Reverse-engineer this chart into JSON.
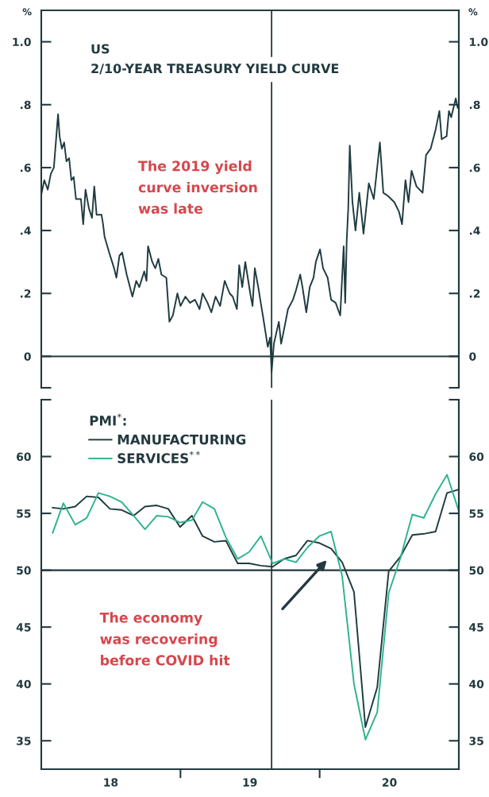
{
  "chart_data": [
    {
      "type": "line",
      "title": "US",
      "subtitle": "2/10-YEAR TREASURY YIELD CURVE",
      "ylabel": "%",
      "y2label": "%",
      "xlim": [
        "2018-01-01",
        "2020-12-31"
      ],
      "ylim": [
        -0.1,
        1.1
      ],
      "yticks": [
        {
          "value": -0.1,
          "label": null
        },
        0,
        {
          "value": 0.2,
          "label": ".2"
        },
        {
          "value": 0.4,
          "label": ".4"
        },
        {
          "value": 0.6,
          "label": ".6"
        },
        {
          "value": 0.8,
          "label": ".8"
        },
        {
          "value": 1,
          "label": "1.0"
        }
      ],
      "y2lim": [
        -0.1,
        1.1
      ],
      "y2ticks": [
        {
          "value": -0.1,
          "label": null
        },
        0,
        {
          "value": 0.2,
          "label": ".2"
        },
        {
          "value": 0.4,
          "label": ".4"
        },
        {
          "value": 0.6,
          "label": ".6"
        },
        {
          "value": 0.8,
          "label": ".8"
        },
        {
          "value": 1,
          "label": "1.0"
        }
      ],
      "tick_labels": "y",
      "series": [
        {
          "color": "#1f3b40",
          "x": [
            "2018-01-02",
            "2018-01-09",
            "2018-01-18",
            "2018-01-26",
            "2018-02-03",
            "2018-02-14",
            "2018-02-18",
            "2018-02-24",
            "2018-03-02",
            "2018-03-08",
            "2018-03-15",
            "2018-03-21",
            "2018-03-27",
            "2018-04-02",
            "2018-04-15",
            "2018-04-21",
            "2018-04-27",
            "2018-05-06",
            "2018-05-14",
            "2018-05-20",
            "2018-05-26",
            "2018-06-08",
            "2018-06-12",
            "2018-06-16",
            "2018-06-28",
            "2018-07-11",
            "2018-07-17",
            "2018-07-25",
            "2018-08-01",
            "2018-08-13",
            "2018-08-28",
            "2018-09-07",
            "2018-09-15",
            "2018-09-28",
            "2018-10-04",
            "2018-10-08",
            "2018-10-19",
            "2018-10-27",
            "2018-11-04",
            "2018-11-12",
            "2018-11-25",
            "2018-12-03",
            "2018-12-12",
            "2018-12-24",
            "2019-01-01",
            "2019-01-14",
            "2019-01-26",
            "2019-02-08",
            "2019-02-20",
            "2019-02-28",
            "2019-03-13",
            "2019-03-23",
            "2019-04-03",
            "2019-04-15",
            "2019-04-27",
            "2019-05-10",
            "2019-05-18",
            "2019-05-29",
            "2019-06-04",
            "2019-06-12",
            "2019-06-20",
            "2019-07-03",
            "2019-07-09",
            "2019-07-15",
            "2019-07-24",
            "2019-08-01",
            "2019-08-09",
            "2019-08-18",
            "2019-08-24",
            "2019-08-28",
            "2019-09-03",
            "2019-09-16",
            "2019-09-22",
            "2019-10-02",
            "2019-10-10",
            "2019-10-23",
            "2019-10-31",
            "2019-11-11",
            "2019-11-17",
            "2019-11-27",
            "2019-12-06",
            "2019-12-16",
            "2019-12-22",
            "2020-01-02",
            "2020-01-10",
            "2020-01-22",
            "2020-01-31",
            "2020-02-12",
            "2020-02-24",
            "2020-03-04",
            "2020-03-08",
            "2020-03-12",
            "2020-03-16",
            "2020-03-20",
            "2020-03-27",
            "2020-04-04",
            "2020-04-14",
            "2020-04-25",
            "2020-05-09",
            "2020-05-22",
            "2020-06-07",
            "2020-06-16",
            "2020-06-28",
            "2020-07-15",
            "2020-07-27",
            "2020-08-04",
            "2020-08-13",
            "2020-08-21",
            "2020-08-29",
            "2020-09-11",
            "2020-09-27",
            "2020-10-06",
            "2020-10-18",
            "2020-10-31",
            "2020-11-10",
            "2020-11-16",
            "2020-11-29",
            "2020-12-05",
            "2020-12-11",
            "2020-12-23",
            "2020-12-28"
          ],
          "values": [
            0.52,
            0.56,
            0.53,
            0.58,
            0.6,
            0.77,
            0.7,
            0.66,
            0.68,
            0.62,
            0.63,
            0.56,
            0.57,
            0.5,
            0.5,
            0.42,
            0.53,
            0.47,
            0.44,
            0.54,
            0.45,
            0.45,
            0.42,
            0.38,
            0.33,
            0.28,
            0.25,
            0.32,
            0.33,
            0.26,
            0.19,
            0.24,
            0.22,
            0.27,
            0.24,
            0.35,
            0.3,
            0.28,
            0.31,
            0.26,
            0.25,
            0.11,
            0.13,
            0.2,
            0.16,
            0.19,
            0.17,
            0.18,
            0.15,
            0.2,
            0.17,
            0.14,
            0.19,
            0.16,
            0.24,
            0.2,
            0.19,
            0.15,
            0.29,
            0.22,
            0.3,
            0.2,
            0.16,
            0.28,
            0.22,
            0.16,
            0.1,
            0.03,
            0.06,
            -0.05,
            0.04,
            0.11,
            0.04,
            0.1,
            0.15,
            0.18,
            0.21,
            0.26,
            0.22,
            0.14,
            0.22,
            0.25,
            0.3,
            0.34,
            0.28,
            0.25,
            0.18,
            0.17,
            0.13,
            0.35,
            0.17,
            0.37,
            0.47,
            0.67,
            0.49,
            0.4,
            0.52,
            0.39,
            0.55,
            0.5,
            0.68,
            0.52,
            0.51,
            0.49,
            0.46,
            0.42,
            0.56,
            0.49,
            0.59,
            0.54,
            0.52,
            0.64,
            0.66,
            0.72,
            0.78,
            0.69,
            0.7,
            0.78,
            0.76,
            0.82,
            0.79
          ]
        }
      ],
      "ref_lines": [
        {
          "axis": "x",
          "value": "2019-08-28",
          "color": "#22393f"
        },
        {
          "axis": "y",
          "value": 0,
          "color": "#22393f"
        }
      ],
      "annotations": [
        "The 2019 yield\ncurve inversion\nwas late"
      ]
    },
    {
      "type": "line",
      "legend": "top left",
      "legend_title": "PMI$^{*}$:",
      "x": [
        "2018-01-31",
        "2018-02-28",
        "2018-03-31",
        "2018-04-30",
        "2018-05-31",
        "2018-06-30",
        "2018-07-31",
        "2018-08-31",
        "2018-09-30",
        "2018-10-31",
        "2018-11-30",
        "2018-12-31",
        "2019-01-31",
        "2019-02-28",
        "2019-03-31",
        "2019-04-30",
        "2019-05-31",
        "2019-06-30",
        "2019-07-31",
        "2019-08-31",
        "2019-09-30",
        "2019-10-31",
        "2019-11-30",
        "2019-12-31",
        "2020-01-31",
        "2020-02-29",
        "2020-03-31",
        "2020-04-30",
        "2020-05-31",
        "2020-06-30",
        "2020-07-31",
        "2020-08-31",
        "2020-09-30",
        "2020-10-31",
        "2020-11-30",
        "2020-12-31"
      ],
      "xlim": [
        "2018-01-01",
        "2020-12-31"
      ],
      "xticks": [
        {
          "value": "2018-07-02",
          "label": "18"
        },
        {
          "value": "2019-01-01",
          "label": null
        },
        {
          "value": "2019-07-02",
          "label": "19"
        },
        {
          "value": "2020-01-01",
          "label": null
        },
        {
          "value": "2020-07-02",
          "label": "20"
        }
      ],
      "ylim": [
        32.5,
        65
      ],
      "yticks": [
        35,
        40,
        45,
        50,
        55,
        60,
        {
          "value": 65,
          "label": null
        }
      ],
      "y2lim": [
        32.5,
        65
      ],
      "y2ticks": [
        35,
        40,
        45,
        50,
        55,
        60,
        {
          "value": 65,
          "label": null
        }
      ],
      "series": [
        {
          "name": "MANUFACTURING",
          "color": "#1f3b40",
          "values": [
            55.5,
            55.4,
            55.6,
            56.5,
            56.4,
            55.4,
            55.3,
            54.8,
            55.6,
            55.7,
            55.4,
            53.8,
            54.8,
            53.0,
            52.5,
            52.6,
            50.6,
            50.6,
            50.4,
            50.3,
            51.0,
            51.3,
            52.6,
            52.4,
            51.9,
            50.7,
            48.1,
            36.2,
            39.7,
            49.9,
            51.2,
            53.1,
            53.2,
            53.4,
            56.8,
            57.1
          ]
        },
        {
          "name": "SERVICES$^{**}$",
          "color": "#2fb390",
          "values": [
            53.3,
            55.9,
            54.0,
            54.6,
            56.8,
            56.5,
            56.0,
            54.8,
            53.6,
            54.8,
            54.7,
            54.2,
            54.4,
            56.0,
            55.4,
            52.9,
            51.0,
            51.6,
            53.0,
            50.6,
            51.0,
            50.7,
            52.0,
            53.0,
            53.4,
            49.5,
            40.0,
            35.1,
            37.5,
            48.0,
            51.1,
            54.9,
            54.6,
            56.7,
            58.4,
            55.2
          ]
        }
      ],
      "ref_lines": [
        {
          "axis": "x",
          "value": "2019-08-28",
          "color": "#22393f"
        },
        {
          "axis": "y",
          "value": 50,
          "color": "#22393f"
        }
      ],
      "annotations": [
        "The economy\nwas recovering\nbefore COVID hit"
      ]
    }
  ]
}
